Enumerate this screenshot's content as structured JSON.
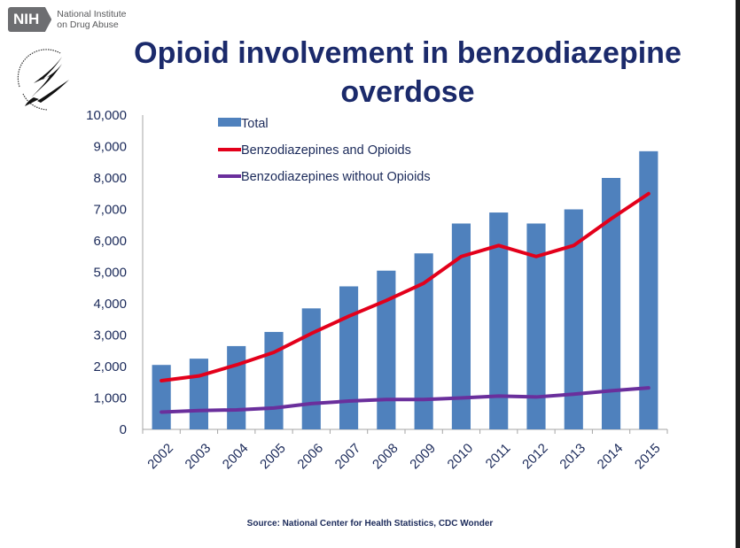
{
  "header": {
    "logo_abbr": "NIH",
    "logo_line1": "National Institute",
    "logo_line2": "on Drug Abuse",
    "seal_icon": "hhs-eagle-seal-icon",
    "title": "Opioid involvement in benzodiazepine overdose"
  },
  "footer": {
    "source": "Source: National Center for Health Statistics, CDC Wonder"
  },
  "colors": {
    "bar": "#4f81bd",
    "benzo_opioid": "#e3001b",
    "benzo_no_opioid": "#6a2f9c",
    "text": "#1b2a5a",
    "title": "#1b2a6b"
  },
  "chart_data": {
    "type": "bar",
    "title": "Opioid involvement in benzodiazepine overdose",
    "xlabel": "",
    "ylabel": "",
    "ylim": [
      0,
      10000
    ],
    "yticks": [
      0,
      1000,
      2000,
      3000,
      4000,
      5000,
      6000,
      7000,
      8000,
      9000,
      10000
    ],
    "ytick_labels": [
      "0",
      "1,000",
      "2,000",
      "3,000",
      "4,000",
      "5,000",
      "6,000",
      "7,000",
      "8,000",
      "9,000",
      "10,000"
    ],
    "grid": false,
    "legend_position": "top-left",
    "categories": [
      "2002",
      "2003",
      "2004",
      "2005",
      "2006",
      "2007",
      "2008",
      "2009",
      "2010",
      "2011",
      "2012",
      "2013",
      "2014",
      "2015"
    ],
    "series": [
      {
        "name": "Total",
        "type": "bar",
        "values": [
          2050,
          2250,
          2650,
          3100,
          3850,
          4550,
          5050,
          5600,
          6550,
          6900,
          6550,
          7000,
          8000,
          8850
        ]
      },
      {
        "name": "Benzodiazepines and Opioids",
        "type": "line",
        "values": [
          1550,
          1700,
          2050,
          2450,
          3050,
          3600,
          4100,
          4650,
          5500,
          5850,
          5500,
          5850,
          6700,
          7500
        ]
      },
      {
        "name": "Benzodiazepines without Opioids",
        "type": "line",
        "values": [
          550,
          600,
          620,
          680,
          820,
          900,
          950,
          950,
          1000,
          1060,
          1030,
          1120,
          1230,
          1320
        ]
      }
    ]
  }
}
